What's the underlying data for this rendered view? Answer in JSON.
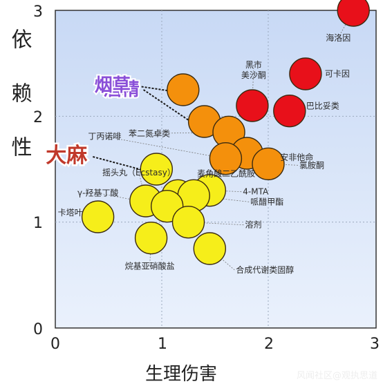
{
  "chart_data": {
    "type": "scatter",
    "title": "",
    "xlabel": "生理伤害",
    "ylabel": "依赖性",
    "xlim": [
      0,
      3
    ],
    "ylim": [
      0,
      3
    ],
    "x_ticks": [
      "0",
      "1",
      "2",
      "3"
    ],
    "y_ticks": [
      "0",
      "1",
      "2",
      "3"
    ],
    "grid": true,
    "legend": "none",
    "colors": {
      "red": "#e8101a",
      "orange": "#f4900c",
      "yellow": "#f6ee1a",
      "background_top": "#c8d9f5",
      "background_bottom": "#eaf1fc"
    },
    "points": [
      {
        "label": "海洛因",
        "x": 2.8,
        "y": 3.0,
        "color": "red"
      },
      {
        "label": "可卡因",
        "x": 2.35,
        "y": 2.4,
        "color": "red"
      },
      {
        "label": "巴比妥类",
        "x": 2.2,
        "y": 2.05,
        "color": "red"
      },
      {
        "label": "黑市美沙酮",
        "x": 1.85,
        "y": 2.1,
        "color": "red"
      },
      {
        "label": "酒精",
        "x": 1.4,
        "y": 1.95,
        "color": "orange"
      },
      {
        "label": "烟草",
        "x": 1.2,
        "y": 2.25,
        "color": "orange"
      },
      {
        "label": "苯二氮卓类",
        "x": 1.63,
        "y": 1.85,
        "color": "orange"
      },
      {
        "label": "安非他命",
        "x": 1.8,
        "y": 1.65,
        "color": "orange"
      },
      {
        "label": "丁丙诺啡",
        "x": 1.6,
        "y": 1.6,
        "color": "orange"
      },
      {
        "label": "氯胺酮",
        "x": 2.0,
        "y": 1.55,
        "color": "orange"
      },
      {
        "label": "大麻",
        "x": 0.95,
        "y": 1.5,
        "color": "yellow"
      },
      {
        "label": "麦角酸二乙酰胺",
        "x": 1.15,
        "y": 1.25,
        "color": "yellow"
      },
      {
        "label": "4-MTA",
        "x": 1.45,
        "y": 1.3,
        "color": "yellow"
      },
      {
        "label": "摇头丸（Ecstasy）",
        "x": 0.85,
        "y": 1.2,
        "color": "yellow"
      },
      {
        "label": "哌醋甲酯",
        "x": 1.3,
        "y": 1.25,
        "color": "yellow"
      },
      {
        "label": "γ-羟基丁酸",
        "x": 1.05,
        "y": 1.15,
        "color": "yellow"
      },
      {
        "label": "溶剂",
        "x": 1.25,
        "y": 1.0,
        "color": "yellow"
      },
      {
        "label": "卡塔叶",
        "x": 0.4,
        "y": 1.05,
        "color": "yellow"
      },
      {
        "label": "合成代谢类固醇",
        "x": 1.45,
        "y": 0.75,
        "color": "yellow"
      },
      {
        "label": "烷基亚硝酸盐",
        "x": 0.9,
        "y": 0.85,
        "color": "yellow"
      }
    ],
    "highlighted_labels": [
      "烟草",
      "酒精",
      "大麻"
    ]
  },
  "watermark": "风闻社区@观执思道"
}
